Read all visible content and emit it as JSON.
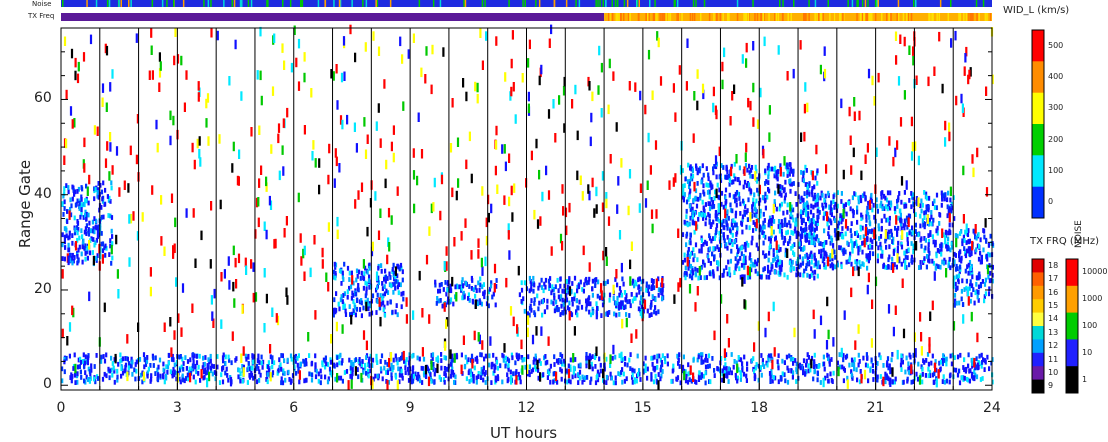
{
  "strips": {
    "noise_label": "Noise",
    "txfreq_label": "TX Freq"
  },
  "chart_data": {
    "type": "heatmap",
    "xlabel": "UT hours",
    "ylabel": "Range Gate",
    "xlim": [
      0,
      24
    ],
    "ylim": [
      -1,
      75
    ],
    "x_ticks": [
      "0",
      "3",
      "6",
      "9",
      "12",
      "15",
      "18",
      "21",
      "24"
    ],
    "y_ticks": [
      "0",
      "20",
      "40",
      "60"
    ],
    "vertical_scan_lines_every_hours": 1,
    "colorbar_width": {
      "title": "WID_L (km/s)",
      "ticks": [
        "500",
        "400",
        "300",
        "200",
        "100",
        "0"
      ],
      "colors": [
        "#ff0000",
        "#ff8c00",
        "#ffff00",
        "#00d000",
        "#00e8ff",
        "#0030ff"
      ]
    },
    "colorbar_txfreq": {
      "title": "TX FRQ (MHz)",
      "ticks": [
        "18",
        "17",
        "16",
        "15",
        "14",
        "13",
        "12",
        "11",
        "10",
        "9"
      ],
      "colors": [
        "#e00000",
        "#ff6000",
        "#ff9a00",
        "#ffcc00",
        "#ffff40",
        "#00d8d8",
        "#00a0ff",
        "#2020ff",
        "#6a1aa8",
        "#000000"
      ]
    },
    "colorbar_noise": {
      "title": "NOISE",
      "ticks": [
        "10000",
        "1000",
        "100",
        "10",
        "1"
      ],
      "colors": [
        "#ff0000",
        "#ffa000",
        "#00cc00",
        "#2020ff",
        "#000000"
      ]
    },
    "echo_regions": [
      {
        "t_start": 0.0,
        "t_end": 1.3,
        "gate_min": 25,
        "gate_max": 42,
        "level": "low"
      },
      {
        "t_start": 7.0,
        "t_end": 8.8,
        "gate_min": 14,
        "gate_max": 25,
        "level": "low"
      },
      {
        "t_start": 9.6,
        "t_end": 11.2,
        "gate_min": 16,
        "gate_max": 22,
        "level": "low"
      },
      {
        "t_start": 11.8,
        "t_end": 15.5,
        "gate_min": 14,
        "gate_max": 22,
        "level": "low"
      },
      {
        "t_start": 16.0,
        "t_end": 19.5,
        "gate_min": 22,
        "gate_max": 46,
        "level": "low"
      },
      {
        "t_start": 19.0,
        "t_end": 23.0,
        "gate_min": 24,
        "gate_max": 40,
        "level": "low"
      },
      {
        "t_start": 23.0,
        "t_end": 24.0,
        "gate_min": 16,
        "gate_max": 32,
        "level": "low"
      },
      {
        "t_start": 0.0,
        "t_end": 24.0,
        "gate_min": 0,
        "gate_max": 6,
        "level": "low"
      }
    ],
    "tx_freq_change": {
      "hour": 14.0,
      "before": "10",
      "after": "14"
    }
  }
}
